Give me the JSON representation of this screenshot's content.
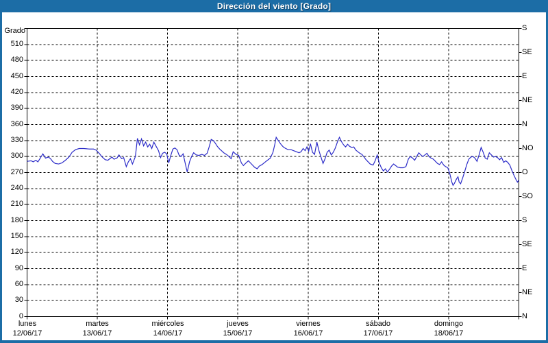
{
  "window": {
    "title": "Dirección del viento [Grado]"
  },
  "colors": {
    "titlebar_bg": "#1c6da6",
    "titlebar_text": "#ffffff",
    "outer_border": "#1c6da6",
    "plot_bg": "#ffffff",
    "grid": "#000000",
    "frame": "#000000",
    "series_line": "#2b2bc8",
    "label_text": "#000000"
  },
  "left_axis": {
    "unit_label": "Grado",
    "tick_values": [
      0,
      30,
      60,
      90,
      120,
      150,
      180,
      210,
      240,
      270,
      300,
      330,
      360,
      390,
      420,
      450,
      480,
      510
    ]
  },
  "right_axis": {
    "ticks": [
      {
        "deg": 540,
        "label": "S"
      },
      {
        "deg": 495,
        "label": "SE"
      },
      {
        "deg": 450,
        "label": "E"
      },
      {
        "deg": 405,
        "label": "NE"
      },
      {
        "deg": 360,
        "label": "N"
      },
      {
        "deg": 315,
        "label": "NO"
      },
      {
        "deg": 270,
        "label": "O"
      },
      {
        "deg": 225,
        "label": "SO"
      },
      {
        "deg": 180,
        "label": "S"
      },
      {
        "deg": 135,
        "label": "SE"
      },
      {
        "deg": 90,
        "label": "E"
      },
      {
        "deg": 45,
        "label": "NE"
      },
      {
        "deg": 0,
        "label": "N"
      }
    ]
  },
  "x_axis": {
    "days": [
      {
        "name": "lunes",
        "date": "12/06/17"
      },
      {
        "name": "martes",
        "date": "13/06/17"
      },
      {
        "name": "miércoles",
        "date": "14/06/17"
      },
      {
        "name": "jueves",
        "date": "15/06/17"
      },
      {
        "name": "viernes",
        "date": "16/06/17"
      },
      {
        "name": "sábado",
        "date": "17/06/17"
      },
      {
        "name": "domingo",
        "date": "18/06/17"
      }
    ]
  },
  "chart_data": {
    "type": "line",
    "title": "Dirección del viento [Grado]",
    "ylabel": "Grado",
    "ylim": [
      0,
      540
    ],
    "y_grid_step": 30,
    "x_unit": "hours_since_start",
    "xlim": [
      0,
      168
    ],
    "x_day_span_hours": 24,
    "grid": "dashed",
    "legend": "none",
    "series": [
      {
        "name": "Dirección del viento",
        "color": "#2b2bc8",
        "points": [
          [
            0,
            291
          ],
          [
            1.4,
            292
          ],
          [
            2.1,
            290
          ],
          [
            3,
            293
          ],
          [
            3.7,
            290
          ],
          [
            4.4,
            296
          ],
          [
            5.4,
            305
          ],
          [
            6.3,
            297
          ],
          [
            7.3,
            299
          ],
          [
            8,
            296
          ],
          [
            8.7,
            291
          ],
          [
            9.6,
            287
          ],
          [
            10.8,
            286
          ],
          [
            11.9,
            288
          ],
          [
            13.1,
            293
          ],
          [
            14.3,
            299
          ],
          [
            15.4,
            308
          ],
          [
            16.6,
            313
          ],
          [
            17.8,
            315
          ],
          [
            19.4,
            315
          ],
          [
            21.3,
            314
          ],
          [
            22.7,
            314
          ],
          [
            23.6,
            312
          ],
          [
            24.8,
            305
          ],
          [
            25.5,
            300
          ],
          [
            26.7,
            294
          ],
          [
            27.6,
            293
          ],
          [
            28.3,
            296
          ],
          [
            29,
            299
          ],
          [
            29.7,
            295
          ],
          [
            30.7,
            297
          ],
          [
            31.4,
            303
          ],
          [
            32.3,
            296
          ],
          [
            33,
            298
          ],
          [
            33.9,
            281
          ],
          [
            34.6,
            290
          ],
          [
            35.3,
            296
          ],
          [
            36,
            286
          ],
          [
            37,
            300
          ],
          [
            37.7,
            334
          ],
          [
            38.4,
            322
          ],
          [
            39.1,
            333
          ],
          [
            39.8,
            320
          ],
          [
            40.5,
            327
          ],
          [
            41.2,
            318
          ],
          [
            41.9,
            323
          ],
          [
            42.6,
            315
          ],
          [
            43.3,
            327
          ],
          [
            44.2,
            318
          ],
          [
            44.9,
            311
          ],
          [
            45.6,
            298
          ],
          [
            46.3,
            306
          ],
          [
            47,
            308
          ],
          [
            47.7,
            305
          ],
          [
            48.4,
            288
          ],
          [
            49.1,
            302
          ],
          [
            49.8,
            314
          ],
          [
            50.5,
            316
          ],
          [
            51.2,
            313
          ],
          [
            51.9,
            303
          ],
          [
            52.6,
            300
          ],
          [
            53.3,
            305
          ],
          [
            54,
            288
          ],
          [
            54.7,
            271
          ],
          [
            55.5,
            290
          ],
          [
            56.2,
            300
          ],
          [
            56.9,
            307
          ],
          [
            57.8,
            303
          ],
          [
            58.7,
            302
          ],
          [
            59.7,
            304
          ],
          [
            60.6,
            302
          ],
          [
            61.5,
            306
          ],
          [
            62.2,
            318
          ],
          [
            62.9,
            332
          ],
          [
            63.6,
            330
          ],
          [
            64.3,
            325
          ],
          [
            65,
            319
          ],
          [
            65.8,
            314
          ],
          [
            66.4,
            311
          ],
          [
            67.2,
            307
          ],
          [
            68.1,
            304
          ],
          [
            69,
            300
          ],
          [
            69.7,
            296
          ],
          [
            70.4,
            309
          ],
          [
            71.4,
            304
          ],
          [
            72.3,
            302
          ],
          [
            73.2,
            288
          ],
          [
            73.9,
            283
          ],
          [
            74.6,
            287
          ],
          [
            75.6,
            292
          ],
          [
            76.3,
            288
          ],
          [
            77,
            284
          ],
          [
            77.7,
            280
          ],
          [
            78.6,
            277
          ],
          [
            79.3,
            282
          ],
          [
            80.3,
            285
          ],
          [
            81.2,
            289
          ],
          [
            82.1,
            293
          ],
          [
            83.1,
            297
          ],
          [
            84,
            308
          ],
          [
            84.6,
            322
          ],
          [
            85.1,
            336
          ],
          [
            85.7,
            331
          ],
          [
            86.3,
            326
          ],
          [
            87,
            321
          ],
          [
            87.7,
            317
          ],
          [
            88.4,
            315
          ],
          [
            89.1,
            313
          ],
          [
            90.1,
            313
          ],
          [
            91,
            311
          ],
          [
            92,
            309
          ],
          [
            92.9,
            307
          ],
          [
            93.6,
            309
          ],
          [
            94.3,
            315
          ],
          [
            95,
            311
          ],
          [
            95.6,
            318
          ],
          [
            96.2,
            310
          ],
          [
            96.8,
            324
          ],
          [
            97.5,
            308
          ],
          [
            98.2,
            304
          ],
          [
            99,
            327
          ],
          [
            99.7,
            311
          ],
          [
            100.4,
            299
          ],
          [
            101.1,
            287
          ],
          [
            101.8,
            296
          ],
          [
            102.5,
            308
          ],
          [
            103.2,
            312
          ],
          [
            103.9,
            303
          ],
          [
            104.6,
            308
          ],
          [
            105.3,
            316
          ],
          [
            106,
            327
          ],
          [
            106.7,
            336
          ],
          [
            107.4,
            328
          ],
          [
            108.1,
            322
          ],
          [
            108.8,
            318
          ],
          [
            109.5,
            323
          ],
          [
            110.2,
            319
          ],
          [
            110.9,
            317
          ],
          [
            111.6,
            318
          ],
          [
            112.3,
            312
          ],
          [
            113,
            309
          ],
          [
            113.7,
            306
          ],
          [
            114.4,
            304
          ],
          [
            115.1,
            299
          ],
          [
            115.8,
            294
          ],
          [
            116.5,
            290
          ],
          [
            117.2,
            286
          ],
          [
            118.2,
            284
          ],
          [
            118.9,
            292
          ],
          [
            119.6,
            303
          ],
          [
            120.3,
            288
          ],
          [
            121,
            279
          ],
          [
            121.7,
            273
          ],
          [
            122.4,
            277
          ],
          [
            123.1,
            271
          ],
          [
            123.8,
            276
          ],
          [
            124.5,
            282
          ],
          [
            125.2,
            286
          ],
          [
            125.9,
            283
          ],
          [
            126.6,
            280
          ],
          [
            127.5,
            279
          ],
          [
            128.5,
            279
          ],
          [
            129.4,
            281
          ],
          [
            130.3,
            296
          ],
          [
            131,
            300
          ],
          [
            131.7,
            297
          ],
          [
            132.4,
            293
          ],
          [
            133.1,
            300
          ],
          [
            133.8,
            307
          ],
          [
            134.5,
            303
          ],
          [
            135.2,
            300
          ],
          [
            135.9,
            303
          ],
          [
            136.6,
            306
          ],
          [
            137.3,
            300
          ],
          [
            138,
            297
          ],
          [
            138.8,
            295
          ],
          [
            139.5,
            291
          ],
          [
            140.2,
            287
          ],
          [
            140.9,
            285
          ],
          [
            141.6,
            290
          ],
          [
            142.3,
            284
          ],
          [
            143,
            281
          ],
          [
            143.7,
            279
          ],
          [
            144.4,
            268
          ],
          [
            145.1,
            252
          ],
          [
            145.5,
            246
          ],
          [
            146,
            250
          ],
          [
            146.7,
            258
          ],
          [
            147.2,
            262
          ],
          [
            147.6,
            252
          ],
          [
            148.1,
            249
          ],
          [
            148.8,
            260
          ],
          [
            149.5,
            272
          ],
          [
            150.2,
            285
          ],
          [
            150.9,
            295
          ],
          [
            151.6,
            299
          ],
          [
            152.3,
            300
          ],
          [
            153,
            297
          ],
          [
            153.7,
            291
          ],
          [
            154.4,
            303
          ],
          [
            155.1,
            317
          ],
          [
            155.8,
            308
          ],
          [
            156.5,
            297
          ],
          [
            157.2,
            295
          ],
          [
            157.9,
            307
          ],
          [
            158.6,
            303
          ],
          [
            159.3,
            299
          ],
          [
            160,
            300
          ],
          [
            160.7,
            298
          ],
          [
            161.4,
            294
          ],
          [
            162.1,
            298
          ],
          [
            162.8,
            289
          ],
          [
            163.5,
            292
          ],
          [
            164.2,
            289
          ],
          [
            164.9,
            284
          ],
          [
            165.6,
            274
          ],
          [
            166.3,
            265
          ],
          [
            167,
            257
          ],
          [
            167.5,
            252
          ],
          [
            168,
            256
          ]
        ]
      }
    ]
  }
}
